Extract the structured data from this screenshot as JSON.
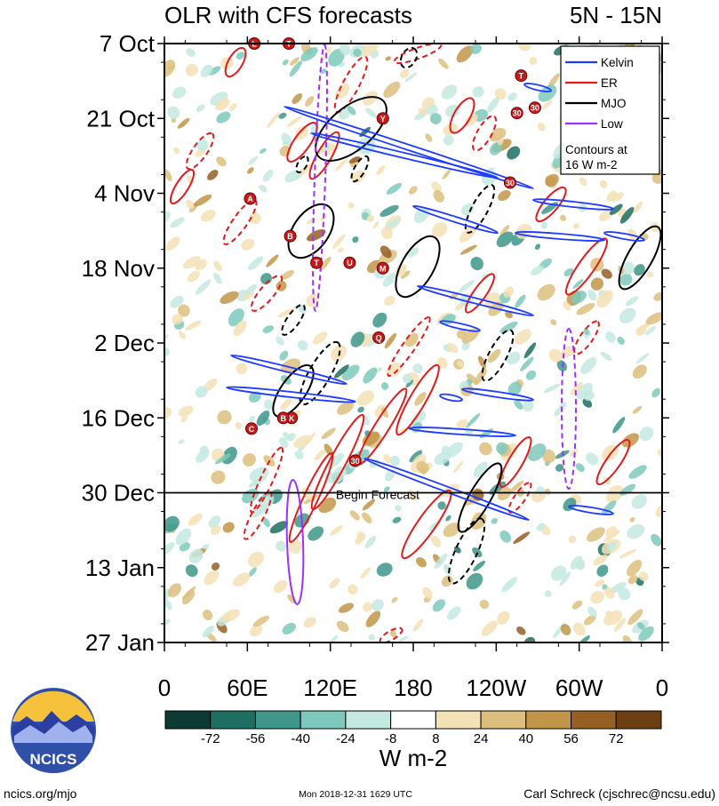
{
  "chart_data": {
    "type": "heatmap",
    "title": "OLR with CFS forecasts",
    "region": "5N - 15N",
    "x_tick_labels": [
      "0",
      "60E",
      "120E",
      "180",
      "120W",
      "60W",
      "0"
    ],
    "y_tick_labels": [
      "7 Oct",
      "21 Oct",
      "4 Nov",
      "18 Nov",
      "2 Dec",
      "16 Dec",
      "30 Dec",
      "13 Jan",
      "27 Jan"
    ],
    "xlim": [
      0,
      360
    ],
    "ylim_dates": [
      "2018-10-07",
      "2019-01-27"
    ],
    "forecast_start": "2018-12-30",
    "forecast_label": "Begin Forecast",
    "colorbar": {
      "unit_label": "W m-2",
      "tick_labels": [
        "-72",
        "-56",
        "-40",
        "-24",
        "-8",
        "8",
        "24",
        "40",
        "56",
        "72"
      ],
      "colors": [
        "#0b3b32",
        "#1f6e62",
        "#3e978a",
        "#7ec9bc",
        "#c4e9e0",
        "#ffffff",
        "#f3e2b6",
        "#dcbf7e",
        "#c29548",
        "#965f23",
        "#6b3f12"
      ]
    },
    "legend": {
      "position": "top-right",
      "entries": [
        {
          "name": "Kelvin",
          "color": "#1f3cff"
        },
        {
          "name": "ER",
          "color": "#e31a1c"
        },
        {
          "name": "MJO",
          "color": "#000000"
        },
        {
          "name": "Low",
          "color": "#9b30ff"
        }
      ],
      "note_line1": "Contours at",
      "note_line2": "16 W m-2"
    },
    "storm_markers": [
      {
        "label": "L",
        "lon": 65,
        "date": "2018-10-07"
      },
      {
        "label": "T",
        "lon": 90,
        "date": "2018-10-07"
      },
      {
        "label": "Y",
        "lon": 158,
        "date": "2018-10-21"
      },
      {
        "label": "T",
        "lon": 258,
        "date": "2018-10-13"
      },
      {
        "label": "30",
        "lon": 268,
        "date": "2018-10-19"
      },
      {
        "label": "30",
        "lon": 255,
        "date": "2018-10-20"
      },
      {
        "label": "30",
        "lon": 250,
        "date": "2018-11-02"
      },
      {
        "label": "A",
        "lon": 62,
        "date": "2018-11-05"
      },
      {
        "label": "B",
        "lon": 91,
        "date": "2018-11-12"
      },
      {
        "label": "T",
        "lon": 110,
        "date": "2018-11-17"
      },
      {
        "label": "U",
        "lon": 134,
        "date": "2018-11-17"
      },
      {
        "label": "M",
        "lon": 158,
        "date": "2018-11-18"
      },
      {
        "label": "Q",
        "lon": 155,
        "date": "2018-12-01"
      },
      {
        "label": "K",
        "lon": 92,
        "date": "2018-12-16"
      },
      {
        "label": "B",
        "lon": 86,
        "date": "2018-12-16"
      },
      {
        "label": "C",
        "lon": 63,
        "date": "2018-12-18"
      },
      {
        "label": "30",
        "lon": 138,
        "date": "2018-12-24"
      }
    ]
  },
  "logo": {
    "text": "NCICS",
    "colors": {
      "sun": "#f6c23b",
      "sky": "#2f4fa8",
      "mountains": "#2b3fa0",
      "light": "#9fb2ee"
    }
  },
  "footer": {
    "left": "ncics.org/mjo",
    "center": "Mon 2018-12-31 1629 UTC",
    "right": "Carl Schreck (cjschrec@ncsu.edu)"
  }
}
